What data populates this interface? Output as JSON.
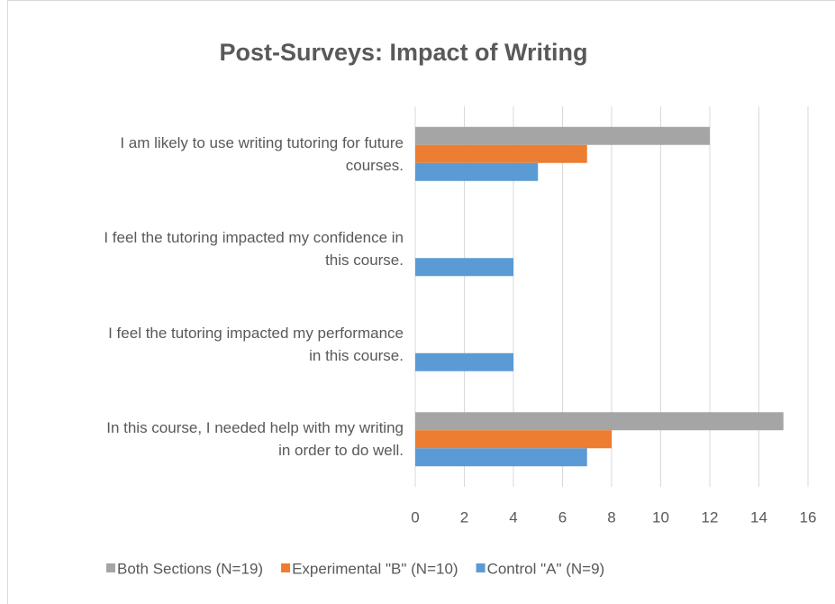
{
  "chart_data": {
    "type": "barh",
    "title": "Post-Surveys: Impact of Writing",
    "categories": [
      "I am likely to use writing tutoring for future courses.",
      "I feel the tutoring impacted my confidence in this course.",
      "I feel the tutoring impacted my performance in this course.",
      "In this course, I needed help with my writing in order to do well."
    ],
    "series": [
      {
        "name": "Both Sections (N=19)",
        "color": "#a5a5a5",
        "values": [
          12,
          0,
          0,
          15
        ]
      },
      {
        "name": "Experimental \"B\" (N=10)",
        "color": "#ed7d31",
        "values": [
          7,
          0,
          0,
          8
        ]
      },
      {
        "name": "Control \"A\" (N=9)",
        "color": "#5b9bd5",
        "values": [
          5,
          4,
          4,
          7
        ]
      }
    ],
    "xlim": [
      0,
      16
    ],
    "xticks": [
      0,
      2,
      4,
      6,
      8,
      10,
      12,
      14,
      16
    ],
    "grid": true,
    "legend": "bottom"
  }
}
